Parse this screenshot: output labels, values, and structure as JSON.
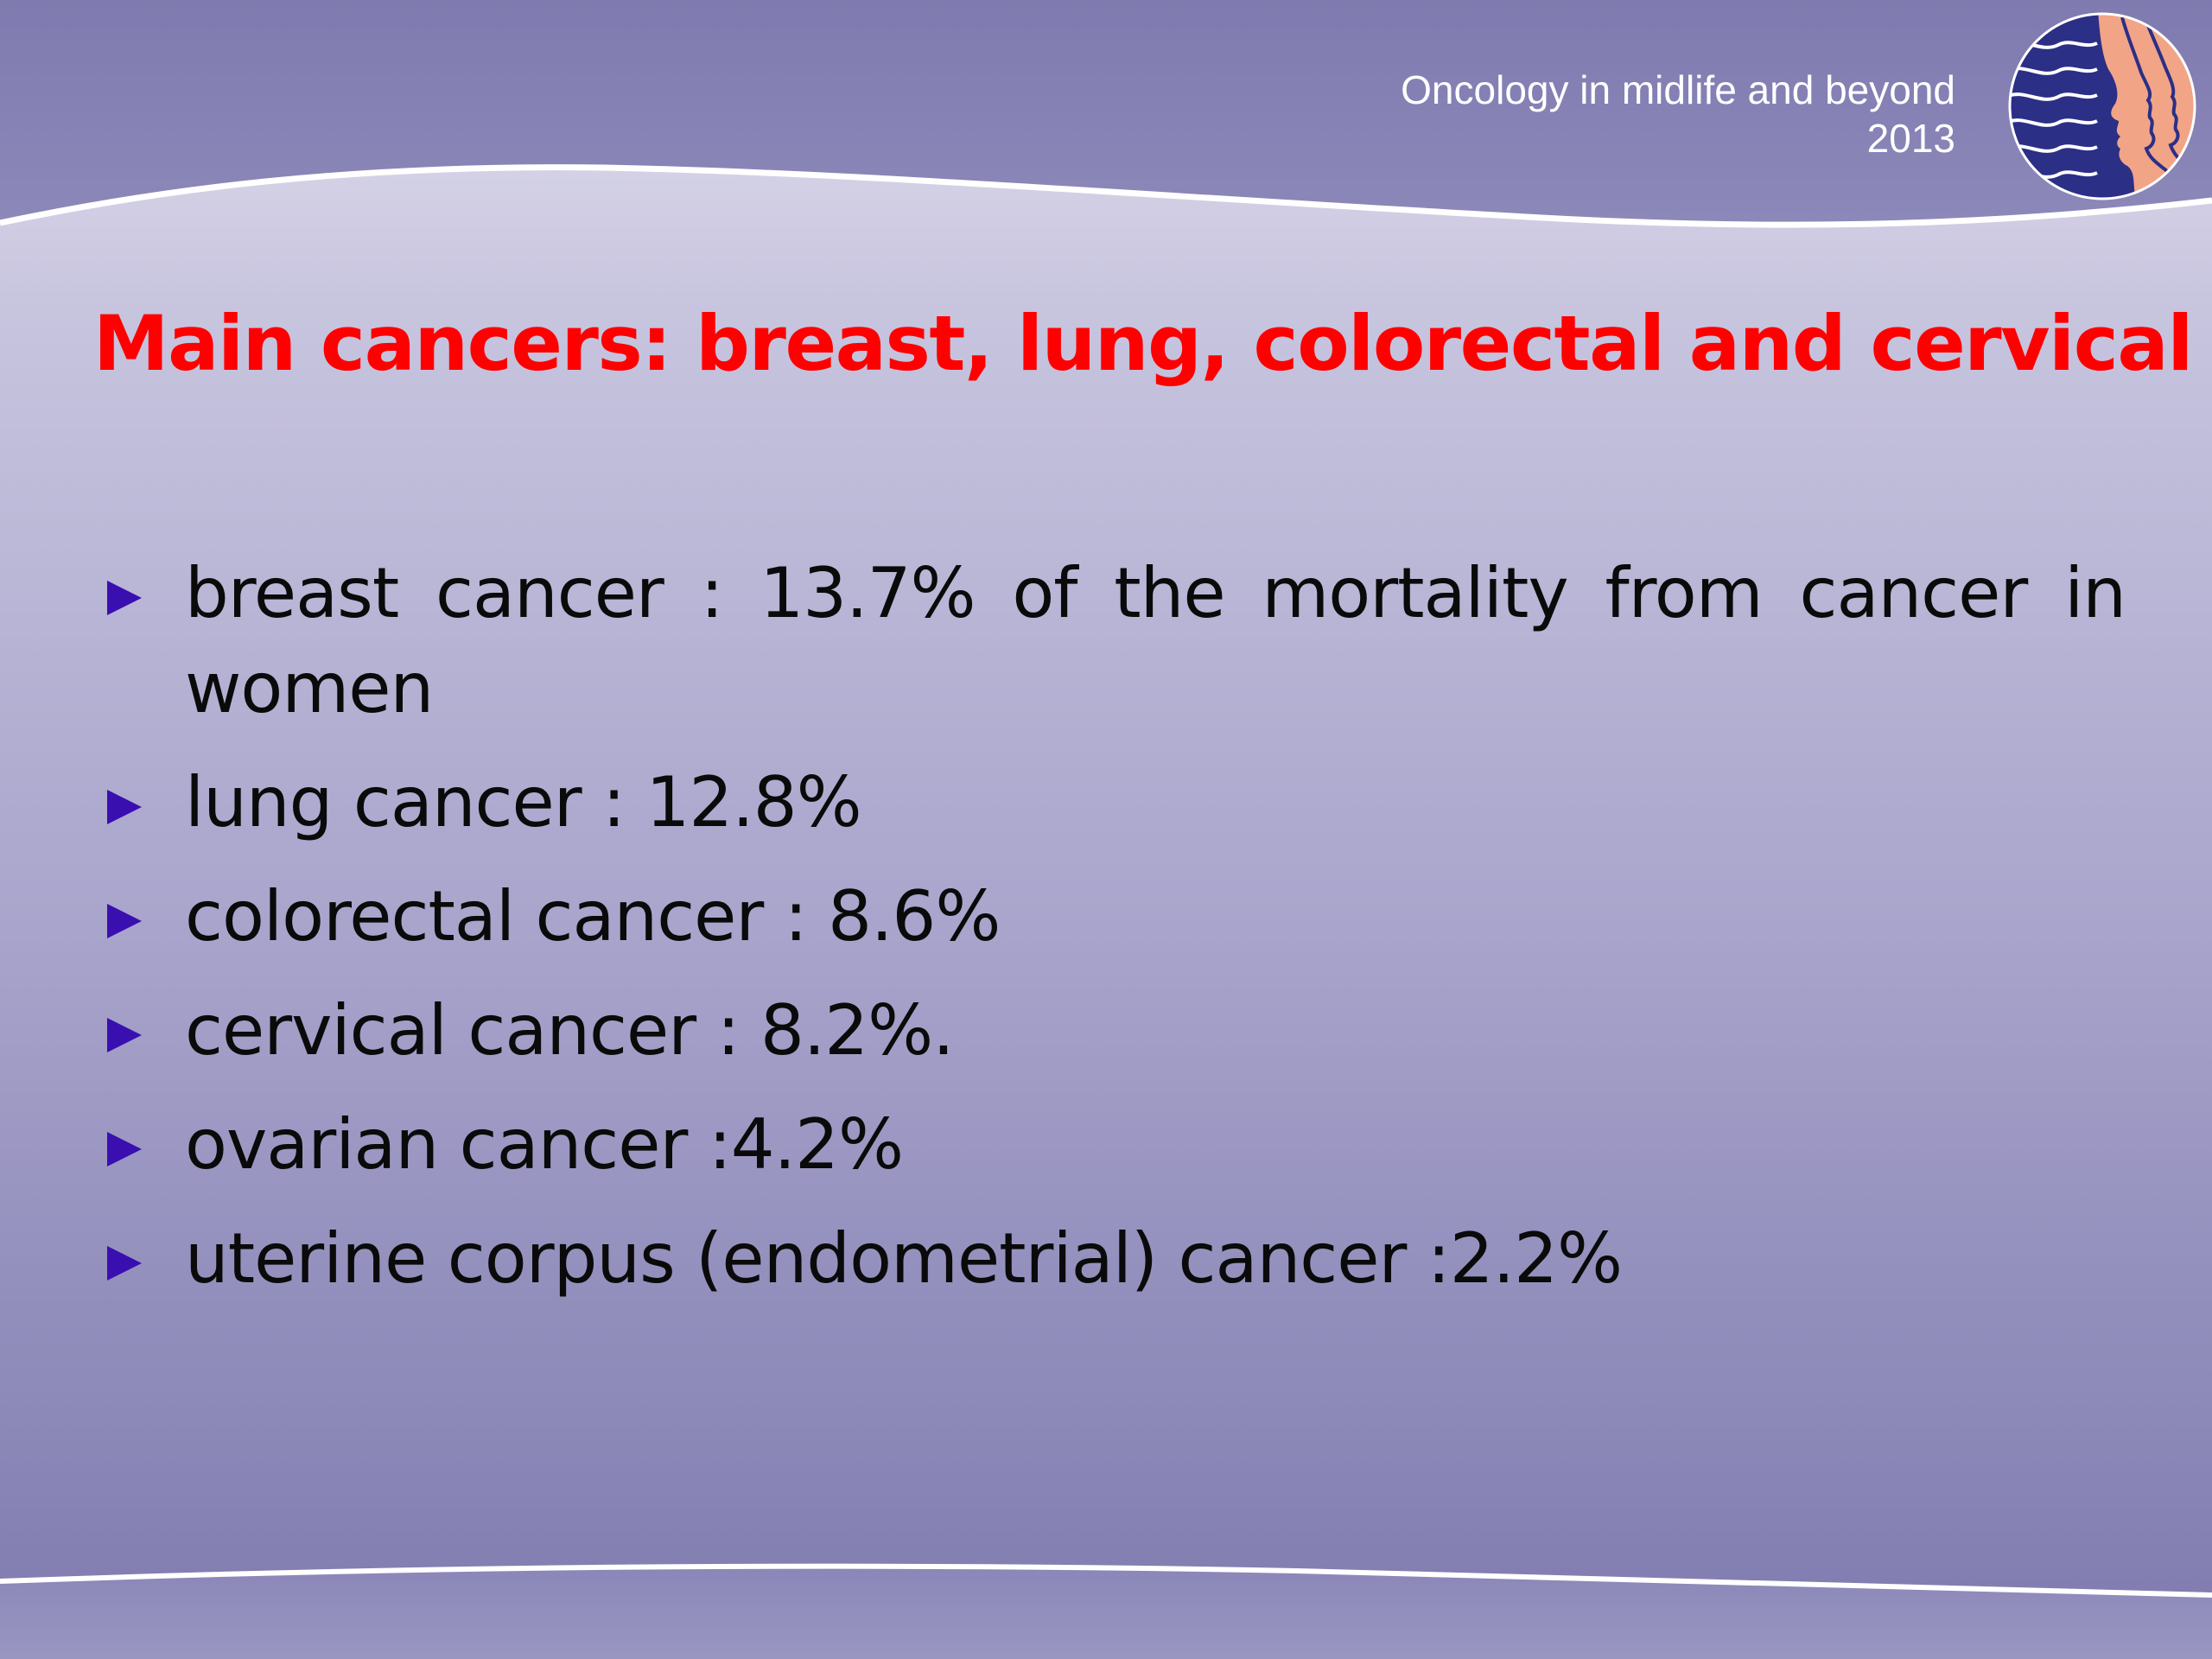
{
  "header": {
    "line1": "Oncology in midlife and beyond",
    "line2": "2013",
    "logo_icon": "profile-faces-logo-icon"
  },
  "title": "Main cancers: breast, lung, colorectal and cervical",
  "bullets": [
    {
      "text": "breast cancer : 13.7% of the mortality from cancer in women"
    },
    {
      "text": "lung cancer : 12.8%"
    },
    {
      "text": "colorectal cancer : 8.6%"
    },
    {
      "text": "cervical cancer : 8.2%."
    },
    {
      "text": "ovarian cancer :4.2%"
    },
    {
      "text": "uterine corpus (endometrial) cancer :2.2%"
    }
  ],
  "colors": {
    "title": "#ff0000",
    "bullet_marker": "#3a0fb0",
    "background_band": "#8682b4",
    "header_text": "#ffffff"
  }
}
